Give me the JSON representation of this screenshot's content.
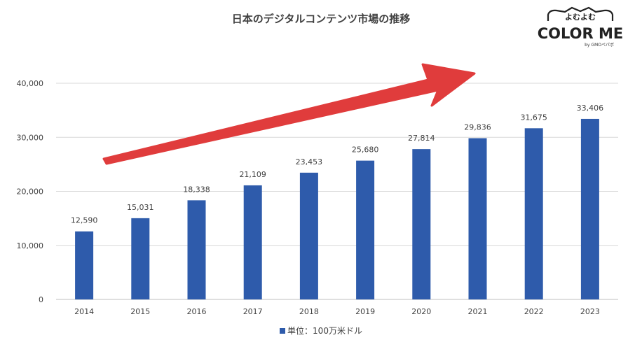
{
  "chart_data": {
    "type": "bar",
    "title": "日本のデジタルコンテンツ市場の推移",
    "categories": [
      "2014",
      "2015",
      "2016",
      "2017",
      "2018",
      "2019",
      "2020",
      "2021",
      "2022",
      "2023"
    ],
    "series": [
      {
        "name": "単位：100万米ドル",
        "values": [
          12590,
          15031,
          18338,
          21109,
          23453,
          25680,
          27814,
          29836,
          31675,
          33406
        ],
        "color": "#2e5bab"
      }
    ],
    "data_labels": [
      "12,590",
      "15,031",
      "18,338",
      "21,109",
      "23,453",
      "25,680",
      "27,814",
      "29,836",
      "31,675",
      "33,406"
    ],
    "y_ticks": [
      "0",
      "10,000",
      "20,000",
      "30,000",
      "40,000"
    ],
    "ylim": [
      0,
      40000
    ],
    "grid": true,
    "legend_position": "bottom",
    "annotation": "red upward trend arrow",
    "arrow_color": "#e03c3c"
  },
  "logo": {
    "top_text": "よむよむ",
    "main_text": "COLOR ME",
    "sub_text": "by GMOペパボ"
  }
}
